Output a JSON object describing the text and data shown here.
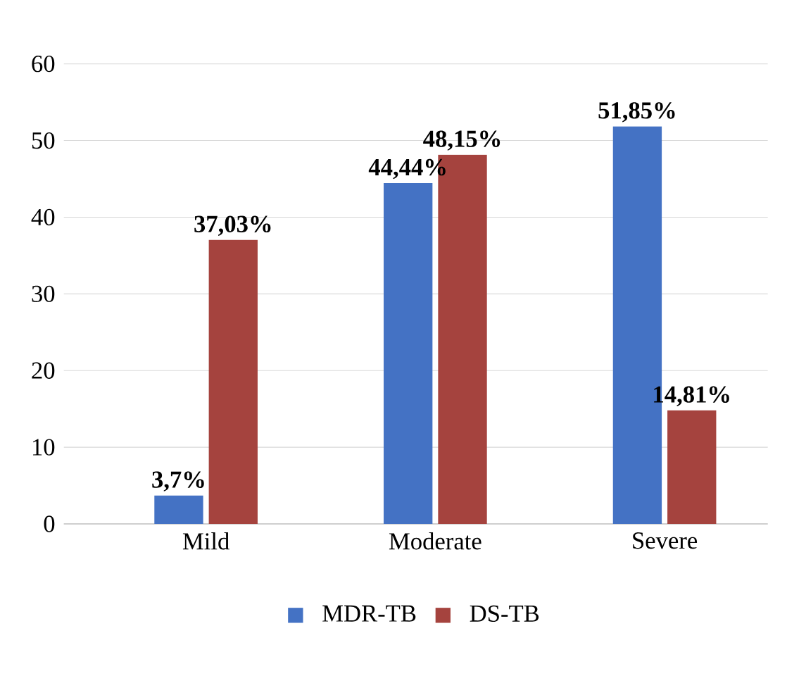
{
  "chart_data": {
    "type": "bar",
    "categories": [
      "Mild",
      "Moderate",
      "Severe"
    ],
    "series": [
      {
        "name": "MDR-TB",
        "color": "#4472c4",
        "values": [
          3.7,
          44.44,
          51.85
        ],
        "value_labels": [
          "3,7%",
          "44,44%",
          "51,85%"
        ]
      },
      {
        "name": "DS-TB",
        "color": "#a5433e",
        "values": [
          37.03,
          48.15,
          14.81
        ],
        "value_labels": [
          "37,03%",
          "48,15%",
          "14,81%"
        ]
      }
    ],
    "ylim": [
      0,
      60
    ],
    "yticks": [
      0,
      10,
      20,
      30,
      40,
      50,
      60
    ],
    "grid": "y",
    "legend": "bottom"
  }
}
